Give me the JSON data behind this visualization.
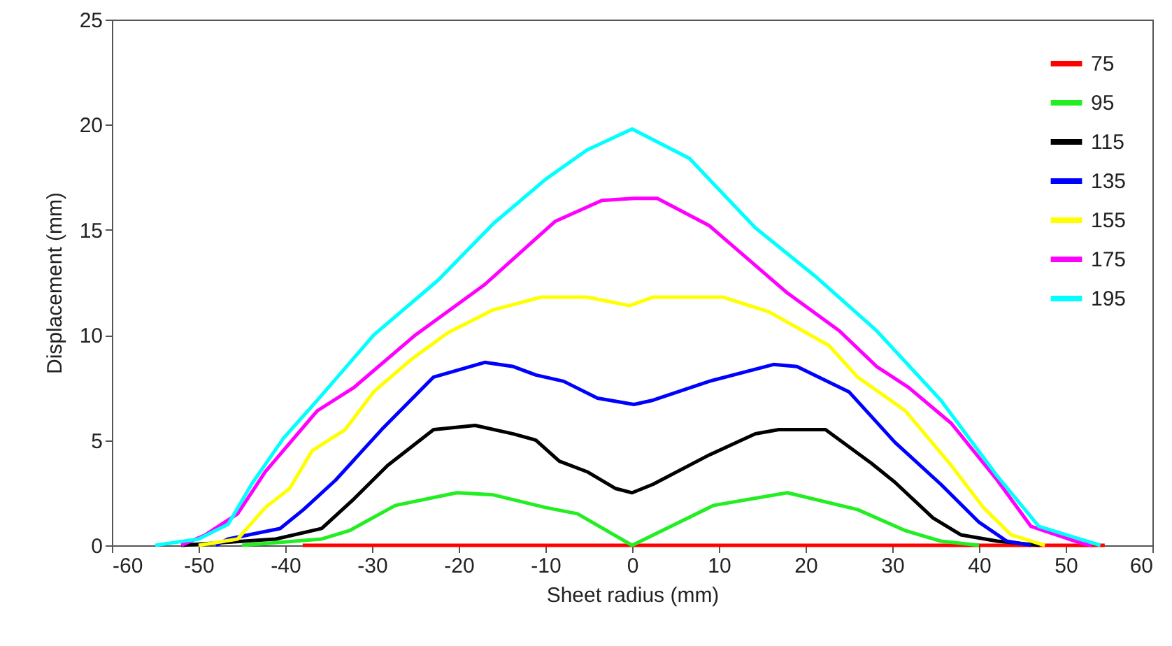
{
  "chart_data": {
    "type": "line",
    "xlabel": "Sheet radius (mm)",
    "ylabel": "Displacement (mm)",
    "xlim": [
      -60,
      60
    ],
    "xticks": [
      -60,
      -50,
      -40,
      -30,
      -20,
      -10,
      0,
      10,
      20,
      30,
      40,
      50,
      60
    ],
    "ylim": [
      0,
      25
    ],
    "yticks": [
      0,
      5,
      10,
      15,
      20,
      25
    ],
    "grid": false,
    "legend": "top right",
    "marker": "none",
    "line_style": "solid",
    "series": [
      {
        "name": "75",
        "color": "#ff0000",
        "x": [
          -38,
          54.5
        ],
        "values": [
          0,
          0
        ]
      },
      {
        "name": "95",
        "color": "#22ee22",
        "x": [
          -45,
          -35.8,
          -32.6,
          -27.3,
          -20.2,
          -16,
          -10,
          -6.3,
          0,
          9.4,
          17.9,
          26,
          31.5,
          35.6,
          40
        ],
        "values": [
          0,
          0.3,
          0.7,
          1.9,
          2.5,
          2.4,
          1.8,
          1.5,
          0,
          1.9,
          2.5,
          1.7,
          0.7,
          0.2,
          0
        ]
      },
      {
        "name": "115",
        "color": "#000000",
        "x": [
          -52,
          -41.1,
          -35.8,
          -32.1,
          -28.2,
          -22.9,
          -18.1,
          -13.7,
          -11.1,
          -8.4,
          -5.2,
          -1.9,
          0,
          2.4,
          8.9,
          14.2,
          16.9,
          22.3,
          27.6,
          30.3,
          34.7,
          37.9,
          42.1,
          47
        ],
        "values": [
          0,
          0.3,
          0.8,
          2.2,
          3.8,
          5.5,
          5.7,
          5.3,
          5,
          4,
          3.5,
          2.7,
          2.5,
          2.9,
          4.3,
          5.3,
          5.5,
          5.5,
          3.9,
          3,
          1.3,
          0.5,
          0.2,
          0
        ]
      },
      {
        "name": "135",
        "color": "#0000ff",
        "x": [
          -48,
          -46.6,
          -40.6,
          -37.9,
          -34.2,
          -28.9,
          -22.9,
          -17,
          -13.7,
          -11.1,
          -7.9,
          -4,
          0.2,
          2.4,
          8.9,
          16.3,
          19,
          25,
          30.3,
          35.6,
          40,
          43.2,
          46
        ],
        "values": [
          0,
          0.3,
          0.8,
          1.7,
          3.1,
          5.5,
          8,
          8.7,
          8.5,
          8.1,
          7.8,
          7,
          6.7,
          6.9,
          7.8,
          8.6,
          8.5,
          7.3,
          4.9,
          2.9,
          1.1,
          0.2,
          0
        ]
      },
      {
        "name": "155",
        "color": "#ffff00",
        "x": [
          -50,
          -45.5,
          -42.3,
          -39.5,
          -36.9,
          -33.1,
          -29.8,
          -25.6,
          -21.3,
          -16,
          -10.5,
          -5.2,
          -0.3,
          2.4,
          10.5,
          15.8,
          22.7,
          26,
          31.5,
          36.8,
          40.5,
          43.7,
          47.6
        ],
        "values": [
          0,
          0.3,
          1.8,
          2.7,
          4.5,
          5.5,
          7.3,
          8.8,
          10.1,
          11.2,
          11.8,
          11.8,
          11.4,
          11.8,
          11.8,
          11.1,
          9.5,
          8,
          6.4,
          3.8,
          1.8,
          0.5,
          0
        ]
      },
      {
        "name": "175",
        "color": "#ff00ff",
        "x": [
          -52,
          -49.2,
          -45.5,
          -42.3,
          -39,
          -36.3,
          -32.1,
          -25,
          -17,
          -8.9,
          -3.5,
          0.2,
          2.9,
          8.9,
          17.9,
          23.9,
          28.2,
          31.9,
          36.8,
          42.1,
          46,
          51.8,
          53
        ],
        "values": [
          0,
          0.5,
          1.5,
          3.5,
          5.1,
          6.4,
          7.5,
          10,
          12.4,
          15.4,
          16.4,
          16.5,
          16.5,
          15.2,
          12,
          10.2,
          8.5,
          7.5,
          5.8,
          3.1,
          0.9,
          0.1,
          0
        ]
      },
      {
        "name": "195",
        "color": "#00ffff",
        "x": [
          -55,
          -50,
          -46.6,
          -43.9,
          -40.2,
          -36.3,
          -29.8,
          -22.4,
          -16,
          -10,
          -5.2,
          0,
          6.6,
          14.2,
          21.1,
          28.2,
          35.6,
          42.1,
          46.9,
          54
        ],
        "values": [
          0,
          0.3,
          1,
          2.9,
          5.1,
          6.9,
          10,
          12.6,
          15.3,
          17.4,
          18.8,
          19.8,
          18.4,
          15.1,
          12.8,
          10.2,
          6.9,
          3.3,
          0.9,
          0
        ]
      }
    ]
  }
}
